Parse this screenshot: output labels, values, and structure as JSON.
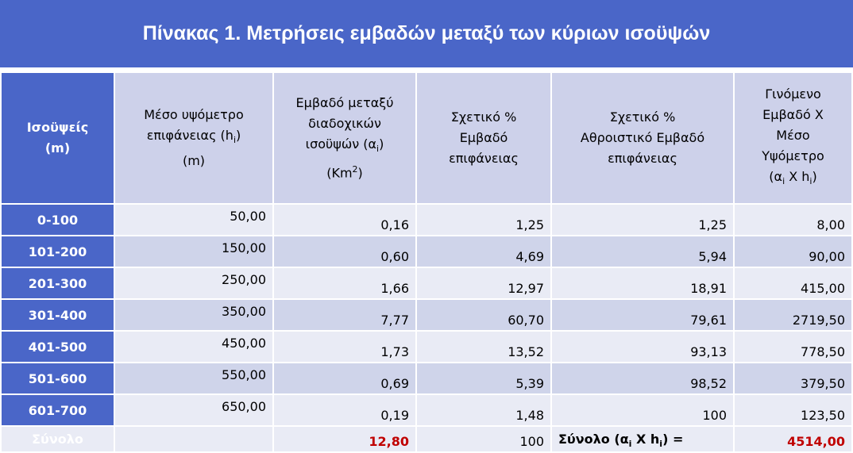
{
  "title": "Πίνακας 1.  Μετρήσεις εμβαδών μεταξύ των κύριων ισοϋψών",
  "header": [
    [
      "Ισοϋψείς",
      "(m)"
    ],
    [
      "Μέσο υψόμετρο",
      "επιφάνειας (h",
      "i",
      ")",
      "(m)"
    ],
    [
      "Εμβαδό μεταξύ",
      "διαδοχικών",
      "ισοϋψών (α",
      "i",
      ")",
      "(Km",
      "2",
      ")"
    ],
    [
      "Σχετικό %",
      "Εμβαδό",
      "επιφάνειας"
    ],
    [
      "Σχετικό %",
      "Αθροιστικό Εμβαδό",
      "επιφάνειας"
    ],
    [
      "Γινόμενο",
      "Εμβαδό  Χ",
      "Μέσο",
      "Υψόμετρο",
      "(α",
      "i",
      " X h",
      "i",
      ")"
    ]
  ],
  "rows": [
    [
      "0-100",
      "50,00",
      "0,16",
      "1,25",
      "1,25",
      "8,00"
    ],
    [
      "101-200",
      "150,00",
      "0,60",
      "4,69",
      "5,94",
      "90,00"
    ],
    [
      "201-300",
      "250,00",
      "1,66",
      "12,97",
      "18,91",
      "415,00"
    ],
    [
      "301-400",
      "350,00",
      "7,77",
      "60,70",
      "79,61",
      "2719,50"
    ],
    [
      "401-500",
      "450,00",
      "1,73",
      "13,52",
      "93,13",
      "778,50"
    ],
    [
      "501-600",
      "550,00",
      "0,69",
      "5,39",
      "98,52",
      "379,50"
    ],
    [
      "601-700",
      "650,00",
      "0,19",
      "1,48",
      "100",
      "123,50"
    ]
  ],
  "total": {
    "label": "Σύνολο",
    "area": "12,80",
    "percent": "100",
    "product_label": [
      "Σύνολο (α",
      "i",
      " X h",
      "i",
      ") ="
    ],
    "product": "4514,00"
  }
}
